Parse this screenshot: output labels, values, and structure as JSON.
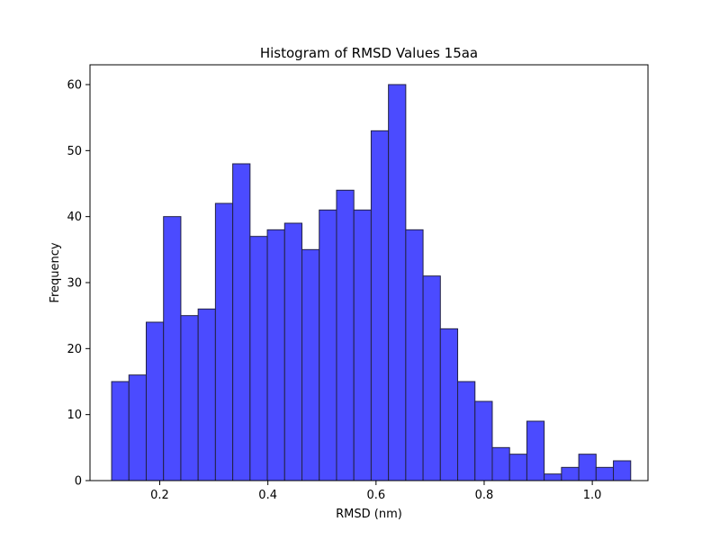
{
  "chart_data": {
    "type": "bar",
    "title": "Histogram of RMSD Values 15aa",
    "xlabel": "RMSD (nm)",
    "ylabel": "Frequency",
    "xlim": [
      0.071,
      1.103
    ],
    "ylim": [
      0,
      63
    ],
    "xticks": [
      0.2,
      0.4,
      0.6,
      0.8,
      1.0
    ],
    "xtick_labels": [
      "0.2",
      "0.4",
      "0.6",
      "0.8",
      "1.0"
    ],
    "yticks": [
      0,
      10,
      20,
      30,
      40,
      50,
      60
    ],
    "ytick_labels": [
      "0",
      "10",
      "20",
      "30",
      "40",
      "50",
      "60"
    ],
    "grid": false,
    "bar_color": "#4b4bff",
    "edge_color": "#222244",
    "bins": [
      {
        "x0": 0.111,
        "x1": 0.143,
        "value": 15
      },
      {
        "x0": 0.143,
        "x1": 0.175,
        "value": 16
      },
      {
        "x0": 0.175,
        "x1": 0.207,
        "value": 24
      },
      {
        "x0": 0.207,
        "x1": 0.239,
        "value": 40
      },
      {
        "x0": 0.239,
        "x1": 0.271,
        "value": 25
      },
      {
        "x0": 0.271,
        "x1": 0.303,
        "value": 26
      },
      {
        "x0": 0.303,
        "x1": 0.335,
        "value": 42
      },
      {
        "x0": 0.335,
        "x1": 0.367,
        "value": 48
      },
      {
        "x0": 0.367,
        "x1": 0.399,
        "value": 37
      },
      {
        "x0": 0.399,
        "x1": 0.431,
        "value": 38
      },
      {
        "x0": 0.431,
        "x1": 0.463,
        "value": 39
      },
      {
        "x0": 0.463,
        "x1": 0.495,
        "value": 35
      },
      {
        "x0": 0.495,
        "x1": 0.527,
        "value": 41
      },
      {
        "x0": 0.527,
        "x1": 0.559,
        "value": 44
      },
      {
        "x0": 0.559,
        "x1": 0.591,
        "value": 41
      },
      {
        "x0": 0.591,
        "x1": 0.623,
        "value": 53
      },
      {
        "x0": 0.623,
        "x1": 0.655,
        "value": 60
      },
      {
        "x0": 0.655,
        "x1": 0.687,
        "value": 38
      },
      {
        "x0": 0.687,
        "x1": 0.719,
        "value": 31
      },
      {
        "x0": 0.719,
        "x1": 0.751,
        "value": 23
      },
      {
        "x0": 0.751,
        "x1": 0.783,
        "value": 15
      },
      {
        "x0": 0.783,
        "x1": 0.815,
        "value": 12
      },
      {
        "x0": 0.815,
        "x1": 0.847,
        "value": 5
      },
      {
        "x0": 0.847,
        "x1": 0.879,
        "value": 4
      },
      {
        "x0": 0.879,
        "x1": 0.911,
        "value": 9
      },
      {
        "x0": 0.911,
        "x1": 0.943,
        "value": 1
      },
      {
        "x0": 0.943,
        "x1": 0.975,
        "value": 2
      },
      {
        "x0": 0.975,
        "x1": 1.007,
        "value": 4
      },
      {
        "x0": 1.007,
        "x1": 1.039,
        "value": 2
      },
      {
        "x0": 1.039,
        "x1": 1.071,
        "value": 3
      }
    ]
  }
}
